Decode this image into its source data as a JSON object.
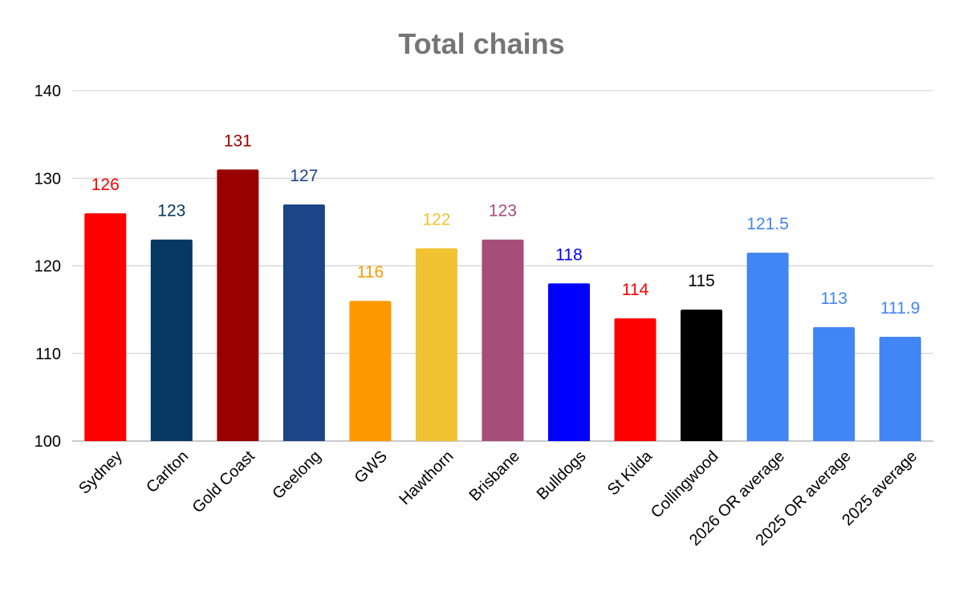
{
  "chart_data": {
    "type": "bar",
    "title": "Total chains",
    "xlabel": "",
    "ylabel": "",
    "ylim": [
      100,
      140
    ],
    "yticks": [
      100,
      110,
      120,
      130,
      140
    ],
    "grid": true,
    "legend": "none",
    "categories": [
      "Sydney",
      "Carlton",
      "Gold Coast",
      "Geelong",
      "GWS",
      "Hawthorn",
      "Brisbane",
      "Bulldogs",
      "St Kilda",
      "Collingwood",
      "2026 OR average",
      "2025 OR average",
      "2025 average"
    ],
    "values": [
      126,
      123,
      131,
      127,
      116,
      122,
      123,
      118,
      114,
      115,
      121.5,
      113,
      111.9
    ],
    "value_labels": [
      "126",
      "123",
      "131",
      "127",
      "116",
      "122",
      "123",
      "118",
      "114",
      "115",
      "121.5",
      "113",
      "111.9"
    ],
    "colors": [
      "#ff0000",
      "#073763",
      "#990000",
      "#1c4587",
      "#ff9900",
      "#f1c232",
      "#a64d79",
      "#0000ff",
      "#ff0000",
      "#000000",
      "#4285f4",
      "#4285f4",
      "#4285f4"
    ]
  }
}
